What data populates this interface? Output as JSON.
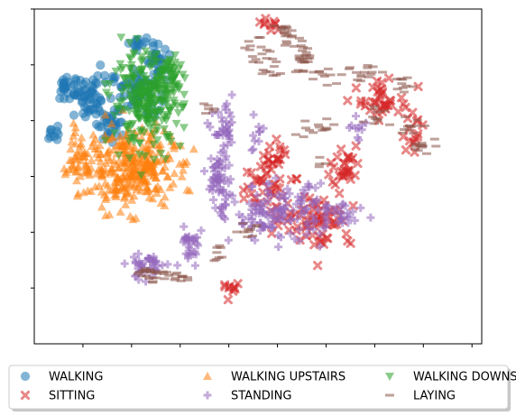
{
  "chart_data": {
    "type": "scatter",
    "title": "",
    "xlabel": "",
    "ylabel": "",
    "grid": false,
    "tick_labels_visible": false,
    "xlim": [
      -50,
      180
    ],
    "ylim": [
      -20,
      100
    ],
    "legend": {
      "placement": "bottom-center",
      "columns": 3,
      "shadow": true
    },
    "series": [
      {
        "name": "WALKING",
        "marker": "circle",
        "color": "#1f77b4",
        "clusters": [
          {
            "cx": -22,
            "cy": 68,
            "sx": 6,
            "sy": 4,
            "n": 55
          },
          {
            "cx": 2,
            "cy": 70,
            "sx": 6,
            "sy": 4,
            "n": 55
          },
          {
            "cx": 14,
            "cy": 82,
            "sx": 3,
            "sy": 3,
            "n": 25
          },
          {
            "cx": 5,
            "cy": 88,
            "sx": 2,
            "sy": 2,
            "n": 12
          },
          {
            "cx": -34,
            "cy": 72,
            "sx": 3,
            "sy": 2,
            "n": 18
          },
          {
            "cx": -40,
            "cy": 55,
            "sx": 1.5,
            "sy": 1.5,
            "n": 10
          },
          {
            "cx": -10,
            "cy": 60,
            "sx": 5,
            "sy": 4,
            "n": 30
          }
        ]
      },
      {
        "name": "WALKING UPSTAIRS",
        "marker": "triangle-up",
        "color": "#ff7f0e",
        "clusters": [
          {
            "cx": 0,
            "cy": 43,
            "sx": 11,
            "sy": 7,
            "n": 300
          },
          {
            "cx": -23,
            "cy": 48,
            "sx": 4,
            "sy": 5,
            "n": 45
          },
          {
            "cx": -31,
            "cy": 42,
            "sx": 2,
            "sy": 2,
            "n": 12
          }
        ]
      },
      {
        "name": "WALKING DOWNSTAIRS",
        "marker": "triangle-down",
        "color": "#2ca02c",
        "clusters": [
          {
            "cx": 8,
            "cy": 67,
            "sx": 9,
            "sy": 8,
            "n": 260
          },
          {
            "cx": 19,
            "cy": 75,
            "sx": 5,
            "sy": 5,
            "n": 50
          }
        ]
      },
      {
        "name": "SITTING",
        "marker": "x",
        "color": "#d62728",
        "clusters": [
          {
            "cx": 95,
            "cy": 25,
            "sx": 9,
            "sy": 5,
            "n": 70
          },
          {
            "cx": 110,
            "cy": 44,
            "sx": 4,
            "sy": 4,
            "n": 30
          },
          {
            "cx": 130,
            "cy": 67,
            "sx": 7,
            "sy": 3,
            "n": 40
          },
          {
            "cx": 70,
            "cy": 35,
            "sx": 8,
            "sy": 7,
            "n": 45
          },
          {
            "cx": 75,
            "cy": 47,
            "sx": 3,
            "sy": 3,
            "n": 15
          },
          {
            "cx": 145,
            "cy": 55,
            "sx": 3,
            "sy": 3,
            "n": 15
          },
          {
            "cx": 52,
            "cy": 0,
            "sx": 3,
            "sy": 1.5,
            "n": 10
          },
          {
            "cx": 72,
            "cy": 94,
            "sx": 2,
            "sy": 1.5,
            "n": 10
          }
        ]
      },
      {
        "name": "STANDING",
        "marker": "plus",
        "color": "#9467bd",
        "clusters": [
          {
            "cx": 75,
            "cy": 27,
            "sx": 12,
            "sy": 5,
            "n": 130
          },
          {
            "cx": 45,
            "cy": 38,
            "sx": 3,
            "sy": 6,
            "n": 60
          },
          {
            "cx": 48,
            "cy": 56,
            "sx": 3,
            "sy": 4,
            "n": 35
          },
          {
            "cx": 8,
            "cy": 8,
            "sx": 5,
            "sy": 2.5,
            "n": 40
          },
          {
            "cx": 30,
            "cy": 15,
            "sx": 3,
            "sy": 4,
            "n": 30
          },
          {
            "cx": 105,
            "cy": 25,
            "sx": 5,
            "sy": 3,
            "n": 30
          },
          {
            "cx": 115,
            "cy": 58,
            "sx": 3,
            "sy": 3,
            "n": 10
          },
          {
            "cx": 65,
            "cy": 55,
            "sx": 3,
            "sy": 3,
            "n": 10
          }
        ]
      },
      {
        "name": "LAYING",
        "marker": "dash",
        "color": "#8c564b",
        "clusters": [
          {
            "cx": 80,
            "cy": 91,
            "sx": 3,
            "sy": 2,
            "n": 20
          },
          {
            "cx": 65,
            "cy": 85,
            "sx": 4,
            "sy": 2,
            "n": 15
          },
          {
            "cx": 90,
            "cy": 82,
            "sx": 5,
            "sy": 3,
            "n": 25
          },
          {
            "cx": 70,
            "cy": 78,
            "sx": 3,
            "sy": 2,
            "n": 10
          },
          {
            "cx": 100,
            "cy": 76,
            "sx": 4,
            "sy": 1.5,
            "n": 10
          },
          {
            "cx": 120,
            "cy": 78,
            "sx": 4,
            "sy": 2,
            "n": 15
          },
          {
            "cx": 140,
            "cy": 73,
            "sx": 3,
            "sy": 2,
            "n": 10
          },
          {
            "cx": 125,
            "cy": 62,
            "sx": 3,
            "sy": 2,
            "n": 10
          },
          {
            "cx": 145,
            "cy": 58,
            "sx": 4,
            "sy": 2,
            "n": 12
          },
          {
            "cx": 100,
            "cy": 58,
            "sx": 3,
            "sy": 1.5,
            "n": 8
          },
          {
            "cx": 88,
            "cy": 56,
            "sx": 3,
            "sy": 1.5,
            "n": 6
          },
          {
            "cx": 150,
            "cy": 52,
            "sx": 3,
            "sy": 2,
            "n": 12
          },
          {
            "cx": 40,
            "cy": 65,
            "sx": 2,
            "sy": 1.5,
            "n": 6
          },
          {
            "cx": 100,
            "cy": 45,
            "sx": 2,
            "sy": 1.5,
            "n": 4
          },
          {
            "cx": 10,
            "cy": 5,
            "sx": 5,
            "sy": 1.5,
            "n": 25
          },
          {
            "cx": 25,
            "cy": 4,
            "sx": 3,
            "sy": 1,
            "n": 10
          },
          {
            "cx": 45,
            "cy": 12,
            "sx": 2,
            "sy": 1.5,
            "n": 8
          },
          {
            "cx": 60,
            "cy": 20,
            "sx": 3,
            "sy": 1.5,
            "n": 10
          }
        ]
      }
    ]
  }
}
